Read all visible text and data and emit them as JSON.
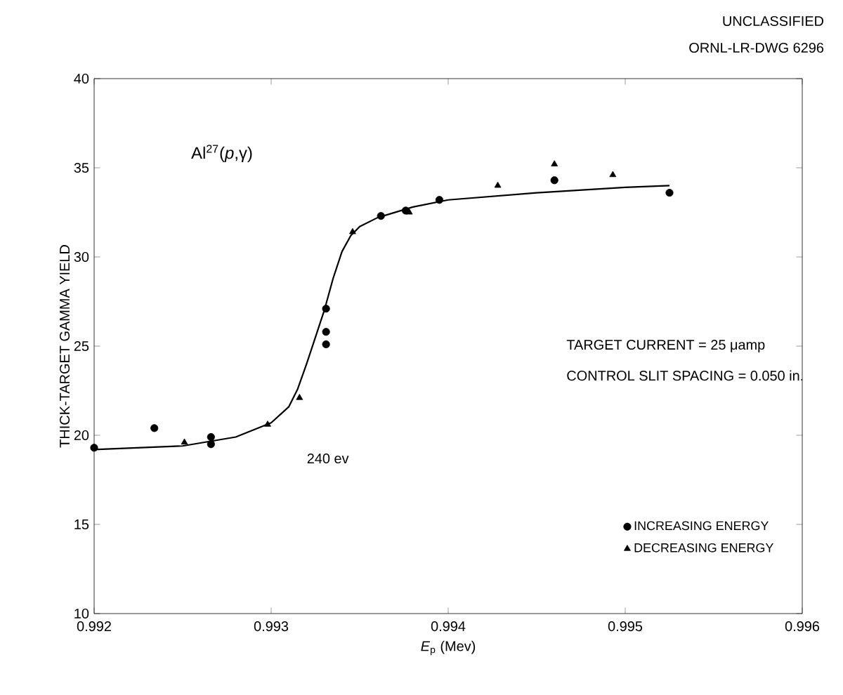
{
  "chart_data": {
    "type": "scatter",
    "title": "Al$^{27}$(*p*,γ)",
    "xlabel": "*E*$_{p}$ (Mev)",
    "ylabel": "THICK-TARGET GAMMA YIELD",
    "xlim": [
      0.992,
      0.996
    ],
    "ylim": [
      10,
      40
    ],
    "xticks": [
      0.992,
      0.993,
      0.994,
      0.995,
      0.996
    ],
    "yticks": [
      10,
      15,
      20,
      25,
      30,
      35,
      40
    ],
    "grid": false,
    "legend": "bottom right",
    "annotations": [
      "UNCLASSIFIED",
      "ORNL-LR-DWG 6296",
      "TARGET CURRENT = 25 μamp",
      "CONTROL SLIT SPACING = 0.050 in.",
      "240 ev"
    ],
    "series": [
      {
        "name": "INCREASING ENERGY",
        "marker": "circle",
        "color": "#000000",
        "x": [
          0.992,
          0.99234,
          0.99266,
          0.99266,
          0.99331,
          0.99331,
          0.99331,
          0.99362,
          0.99376,
          0.99395,
          0.9946,
          0.99525
        ],
        "values": [
          19.3,
          20.4,
          19.9,
          19.5,
          27.1,
          25.8,
          25.1,
          32.3,
          32.6,
          33.2,
          34.3,
          33.6
        ]
      },
      {
        "name": "DECREASING ENERGY",
        "marker": "triangle",
        "color": "#000000",
        "x": [
          0.99251,
          0.99298,
          0.99316,
          0.99346,
          0.99378,
          0.99428,
          0.9946,
          0.99493
        ],
        "values": [
          19.6,
          20.6,
          22.1,
          31.4,
          32.5,
          34.0,
          35.2,
          34.6
        ]
      },
      {
        "type": "line",
        "marker": "none",
        "line_style": "solid",
        "color": "#000000",
        "x": [
          0.992,
          0.9925,
          0.9928,
          0.993,
          0.9931,
          0.99315,
          0.9932,
          0.99325,
          0.9933,
          0.99335,
          0.9934,
          0.99345,
          0.9935,
          0.9936,
          0.9938,
          0.994,
          0.9945,
          0.995,
          0.99525
        ],
        "values": [
          19.2,
          19.4,
          19.9,
          20.7,
          21.6,
          22.6,
          24.0,
          25.5,
          27.0,
          28.8,
          30.3,
          31.2,
          31.7,
          32.2,
          32.8,
          33.2,
          33.6,
          33.9,
          34.0
        ]
      }
    ]
  }
}
